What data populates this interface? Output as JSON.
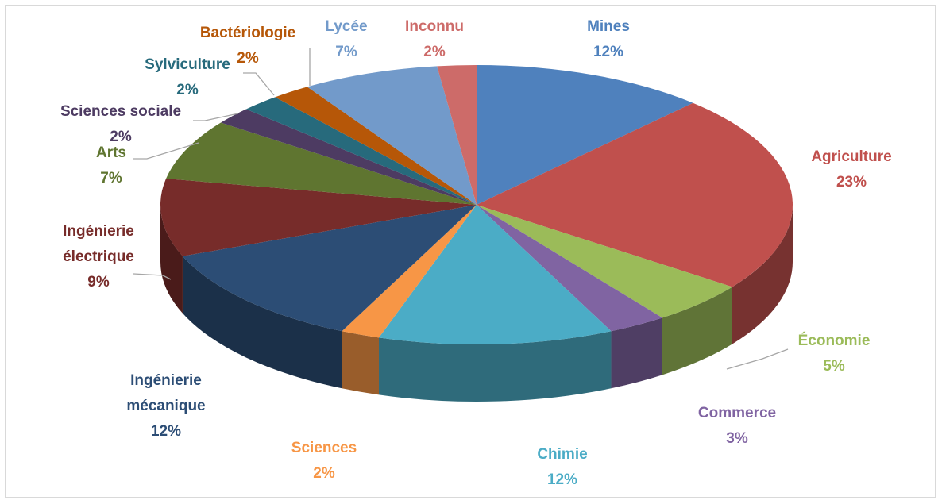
{
  "chart_data": {
    "type": "pie",
    "categories": [
      "Mines",
      "Agriculture",
      "Économie",
      "Commerce",
      "Chimie",
      "Sciences",
      "Ingénierie mécanique",
      "Ingénierie électrique",
      "Arts",
      "Sciences sociale",
      "Sylviculture",
      "Bactériologie",
      "Lycée",
      "Inconnu"
    ],
    "values": [
      12,
      23,
      5,
      3,
      12,
      2,
      12,
      9,
      7,
      2,
      2,
      2,
      7,
      2
    ],
    "value_labels": [
      "12%",
      "23%",
      "5%",
      "3%",
      "12%",
      "2%",
      "12%",
      "9%",
      "7%",
      "2%",
      "2%",
      "2%",
      "7%",
      "2%"
    ],
    "colors": [
      "#4f81bd",
      "#c0504d",
      "#9bbb59",
      "#8064a2",
      "#4bacc6",
      "#f79646",
      "#2c4d75",
      "#772c2a",
      "#5f7530",
      "#4d3b62",
      "#276a7c",
      "#b65708",
      "#729aca",
      "#cd6b69"
    ]
  }
}
